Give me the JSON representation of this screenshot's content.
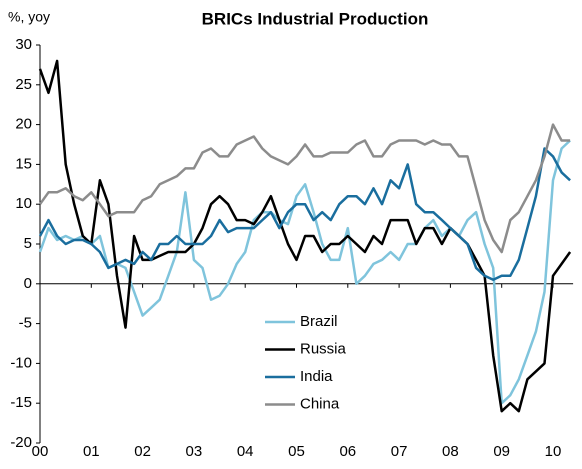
{
  "chart_data": {
    "type": "line",
    "title": "BRICs Industrial Production",
    "y_label": "%, yoy",
    "categories": [
      "00",
      null,
      null,
      null,
      null,
      null,
      "01",
      null,
      null,
      null,
      null,
      null,
      "02",
      null,
      null,
      null,
      null,
      null,
      "03",
      null,
      null,
      null,
      null,
      null,
      "04",
      null,
      null,
      null,
      null,
      null,
      "05",
      null,
      null,
      null,
      null,
      null,
      "06",
      null,
      null,
      null,
      null,
      null,
      "07",
      null,
      null,
      null,
      null,
      null,
      "08",
      null,
      null,
      null,
      null,
      null,
      "09",
      null,
      null,
      null,
      null,
      null,
      "10",
      null,
      null
    ],
    "series": [
      {
        "name": "Brazil",
        "color": "#7fc4dc",
        "values": [
          4,
          7,
          5.5,
          6,
          5.5,
          6,
          5,
          6,
          2,
          2.5,
          2,
          -1,
          -4,
          -3,
          -2,
          1,
          4,
          11.5,
          3,
          2,
          -2,
          -1.5,
          0,
          2.5,
          4,
          8,
          9,
          9,
          8,
          7.5,
          11,
          12.5,
          9,
          5,
          3,
          3,
          7,
          0,
          1,
          2.5,
          3,
          4,
          3,
          5,
          5,
          7,
          8,
          6,
          7,
          6,
          8,
          9,
          5,
          2,
          -15,
          -14,
          -12,
          -9,
          -6,
          -1,
          13,
          17,
          18
        ]
      },
      {
        "name": "Russia",
        "color": "#000000",
        "values": [
          27,
          24,
          28,
          15,
          10,
          6,
          5,
          13,
          10,
          1,
          -5.5,
          6,
          3,
          3,
          3.5,
          4,
          4,
          4,
          5,
          7,
          10,
          11,
          10,
          8,
          8,
          7.5,
          9,
          11,
          8,
          5,
          3,
          6,
          6,
          4,
          5,
          5,
          6,
          5,
          4,
          6,
          5,
          8,
          8,
          8,
          5,
          7,
          7,
          5,
          7,
          6,
          5,
          3,
          1,
          -9,
          -16,
          -15,
          -16,
          -12,
          -11,
          -10,
          1,
          2.5,
          4
        ]
      },
      {
        "name": "India",
        "color": "#1a6e9e",
        "values": [
          6,
          8,
          6,
          5,
          5.5,
          5.5,
          5,
          4,
          2,
          2.5,
          3,
          2.5,
          4,
          3,
          5,
          5,
          6,
          5,
          5,
          5,
          6,
          8,
          6.5,
          7,
          7,
          7,
          8,
          9,
          7,
          9,
          10,
          10,
          8,
          9,
          8,
          10,
          11,
          11,
          10,
          12,
          10,
          13,
          12,
          15,
          10,
          9,
          9,
          8,
          7,
          6,
          5,
          2,
          1,
          0.5,
          1,
          1,
          3,
          7,
          11,
          17,
          16,
          14,
          13
        ]
      },
      {
        "name": "China",
        "color": "#8c8c8c",
        "values": [
          10,
          11.5,
          11.5,
          12,
          11,
          10.5,
          11.5,
          10,
          8.5,
          9,
          9,
          9,
          10.5,
          11,
          12.5,
          13,
          13.5,
          14.5,
          14.5,
          16.5,
          17,
          16,
          16,
          17.5,
          18,
          18.5,
          17,
          16,
          15.5,
          15,
          16,
          17.5,
          16,
          16,
          16.5,
          16.5,
          16.5,
          17.5,
          18,
          16,
          16,
          17.5,
          18,
          18,
          18,
          17.5,
          18,
          17.5,
          17.5,
          16,
          16,
          12,
          8,
          5.5,
          4,
          8,
          9,
          11,
          13,
          16,
          20,
          18,
          18
        ]
      }
    ],
    "ylim": [
      -20,
      30
    ],
    "yticks": [
      -20,
      -15,
      -10,
      -5,
      0,
      5,
      10,
      15,
      20,
      25,
      30
    ]
  }
}
